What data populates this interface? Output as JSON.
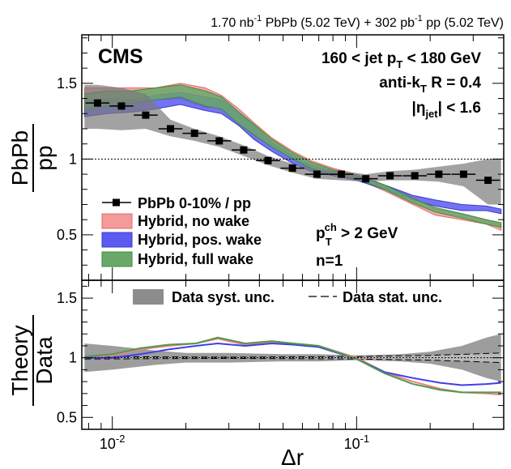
{
  "header": "1.70 nb-1 PbPb (5.02 TeV) + 302 pb-1 pp (5.02 TeV)",
  "header_parts": [
    "1.70 nb",
    "-1",
    " PbPb (5.02 TeV) + 302 pb",
    "-1",
    " pp (5.02 TeV)"
  ],
  "experiment": "CMS",
  "selection": {
    "jet_pt": "160 < jet p_T < 180 GeV",
    "algo": "anti-k_T R = 0.4",
    "eta": "|η_jet| < 1.6",
    "track_pt": "p_T^ch > 2 GeV",
    "n": "n=1"
  },
  "colors": {
    "data": "#000000",
    "data_syst": "#8c8c8c",
    "no_wake": "#f08080",
    "pos_wake": "#3f3fe8",
    "full_wake": "#4f9a4f"
  },
  "chart_data": [
    {
      "type": "line",
      "panel": "upper",
      "xlabel": "Δr",
      "ylabel": "PbPb/pp",
      "xscale": "log",
      "xlim": [
        0.0075,
        0.4
      ],
      "ylim": [
        0.2,
        1.82
      ],
      "yticks": [
        0.5,
        1,
        1.5
      ],
      "xtick_labels": [
        "10^-2",
        "10^-1"
      ],
      "reference_line": 1,
      "legend": {
        "placement": "bottom-left",
        "entries": [
          "PbPb 0-10% / pp",
          "Hybrid, no wake",
          "Hybrid, pos. wake",
          "Hybrid, full wake"
        ]
      },
      "x": [
        0.0087,
        0.0109,
        0.0137,
        0.0173,
        0.0217,
        0.0274,
        0.0345,
        0.0434,
        0.0546,
        0.0688,
        0.0866,
        0.109,
        0.137,
        0.173,
        0.217,
        0.274,
        0.345
      ],
      "series": [
        {
          "name": "PbPb 0-10% / pp",
          "values": [
            1.37,
            1.35,
            1.29,
            1.2,
            1.17,
            1.12,
            1.06,
            0.99,
            0.94,
            0.9,
            0.9,
            0.87,
            0.89,
            0.89,
            0.9,
            0.9,
            0.86
          ],
          "syst_low": [
            1.2,
            1.19,
            1.2,
            1.15,
            1.12,
            1.08,
            1.02,
            0.96,
            0.91,
            0.87,
            0.86,
            0.85,
            0.86,
            0.86,
            0.85,
            0.82,
            0.7
          ],
          "syst_high": [
            1.49,
            1.47,
            1.43,
            1.26,
            1.2,
            1.15,
            1.09,
            1.02,
            0.97,
            0.93,
            0.92,
            0.9,
            0.92,
            0.93,
            0.95,
            0.97,
            1.0
          ]
        },
        {
          "name": "Hybrid, no wake",
          "x": [
            0.0077,
            0.0095,
            0.012,
            0.015,
            0.019,
            0.024,
            0.028,
            0.033,
            0.038,
            0.045,
            0.055,
            0.065,
            0.08,
            0.1,
            0.13,
            0.17,
            0.21,
            0.27,
            0.34,
            0.39
          ],
          "low": [
            1.37,
            1.37,
            1.38,
            1.39,
            1.4,
            1.34,
            1.34,
            1.24,
            1.17,
            1.09,
            1.0,
            0.94,
            0.9,
            0.87,
            0.79,
            0.7,
            0.63,
            0.6,
            0.57,
            0.53
          ],
          "high": [
            1.47,
            1.47,
            1.47,
            1.47,
            1.5,
            1.47,
            1.42,
            1.33,
            1.24,
            1.14,
            1.05,
            0.99,
            0.94,
            0.9,
            0.83,
            0.74,
            0.67,
            0.64,
            0.6,
            0.57
          ]
        },
        {
          "name": "Hybrid, pos. wake",
          "x": [
            0.0077,
            0.0095,
            0.012,
            0.015,
            0.019,
            0.024,
            0.028,
            0.033,
            0.038,
            0.045,
            0.055,
            0.065,
            0.08,
            0.1,
            0.13,
            0.17,
            0.21,
            0.27,
            0.34,
            0.39
          ],
          "low": [
            1.28,
            1.3,
            1.31,
            1.33,
            1.36,
            1.32,
            1.3,
            1.22,
            1.13,
            1.05,
            0.97,
            0.92,
            0.89,
            0.86,
            0.8,
            0.73,
            0.69,
            0.66,
            0.66,
            0.64
          ],
          "high": [
            1.38,
            1.4,
            1.39,
            1.42,
            1.44,
            1.41,
            1.39,
            1.3,
            1.22,
            1.11,
            1.02,
            0.96,
            0.92,
            0.89,
            0.83,
            0.76,
            0.73,
            0.7,
            0.69,
            0.67
          ]
        },
        {
          "name": "Hybrid, full wake",
          "x": [
            0.0077,
            0.0095,
            0.012,
            0.015,
            0.019,
            0.024,
            0.028,
            0.033,
            0.038,
            0.045,
            0.055,
            0.065,
            0.08,
            0.1,
            0.13,
            0.17,
            0.21,
            0.27,
            0.34,
            0.39
          ],
          "low": [
            1.33,
            1.35,
            1.37,
            1.39,
            1.41,
            1.35,
            1.33,
            1.23,
            1.16,
            1.08,
            1.0,
            0.94,
            0.9,
            0.87,
            0.8,
            0.71,
            0.65,
            0.61,
            0.57,
            0.55
          ],
          "high": [
            1.43,
            1.45,
            1.45,
            1.47,
            1.49,
            1.45,
            1.41,
            1.31,
            1.23,
            1.13,
            1.04,
            0.98,
            0.93,
            0.89,
            0.83,
            0.74,
            0.68,
            0.64,
            0.6,
            0.58
          ]
        }
      ]
    },
    {
      "type": "line",
      "panel": "lower",
      "xlabel": "Δr",
      "ylabel": "Theory/Data",
      "xscale": "log",
      "xlim": [
        0.0075,
        0.4
      ],
      "ylim": [
        0.4,
        1.65
      ],
      "yticks": [
        0.5,
        1,
        1.5
      ],
      "xtick_labels": [
        "10^-2",
        "10^-1"
      ],
      "reference_line": 1,
      "legend": {
        "placement": "top",
        "entries": [
          "Data syst. unc.",
          "Data stat. unc."
        ]
      },
      "series": [
        {
          "name": "Data syst. unc.",
          "x": [
            0.0077,
            0.01,
            0.015,
            0.02,
            0.03,
            0.05,
            0.07,
            0.1,
            0.15,
            0.2,
            0.27,
            0.34,
            0.39
          ],
          "low": [
            0.88,
            0.9,
            0.94,
            0.96,
            0.96,
            0.97,
            0.97,
            0.98,
            0.97,
            0.95,
            0.9,
            0.83,
            0.8
          ],
          "high": [
            1.12,
            1.1,
            1.06,
            1.04,
            1.04,
            1.03,
            1.03,
            1.02,
            1.03,
            1.05,
            1.1,
            1.17,
            1.2
          ]
        },
        {
          "name": "Data stat. unc.",
          "x": [
            0.0077,
            0.03,
            0.1,
            0.2,
            0.39
          ],
          "low": [
            0.99,
            0.995,
            0.99,
            0.98,
            0.96
          ],
          "high": [
            1.01,
            1.005,
            1.01,
            1.02,
            1.04
          ]
        },
        {
          "name": "Hybrid, no wake",
          "x": [
            0.0077,
            0.01,
            0.013,
            0.017,
            0.022,
            0.027,
            0.035,
            0.045,
            0.055,
            0.07,
            0.1,
            0.13,
            0.17,
            0.22,
            0.27,
            0.34,
            0.39
          ],
          "values": [
            1.0,
            1.02,
            1.07,
            1.1,
            1.12,
            1.16,
            1.11,
            1.13,
            1.12,
            1.1,
            1.0,
            0.88,
            0.8,
            0.74,
            0.71,
            0.7,
            0.69
          ]
        },
        {
          "name": "Hybrid, pos. wake",
          "x": [
            0.0077,
            0.01,
            0.013,
            0.017,
            0.022,
            0.027,
            0.035,
            0.045,
            0.055,
            0.07,
            0.1,
            0.13,
            0.17,
            0.22,
            0.27,
            0.34,
            0.39
          ],
          "values": [
            1.0,
            1.0,
            1.03,
            1.07,
            1.1,
            1.12,
            1.1,
            1.12,
            1.11,
            1.09,
            0.99,
            0.88,
            0.83,
            0.79,
            0.77,
            0.78,
            0.79
          ]
        },
        {
          "name": "Hybrid, full wake",
          "x": [
            0.0077,
            0.01,
            0.013,
            0.017,
            0.022,
            0.027,
            0.035,
            0.045,
            0.055,
            0.07,
            0.1,
            0.13,
            0.17,
            0.22,
            0.27,
            0.34,
            0.39
          ],
          "values": [
            1.01,
            1.03,
            1.08,
            1.11,
            1.12,
            1.17,
            1.12,
            1.14,
            1.12,
            1.1,
            0.99,
            0.87,
            0.78,
            0.73,
            0.71,
            0.71,
            0.71
          ]
        }
      ]
    }
  ]
}
